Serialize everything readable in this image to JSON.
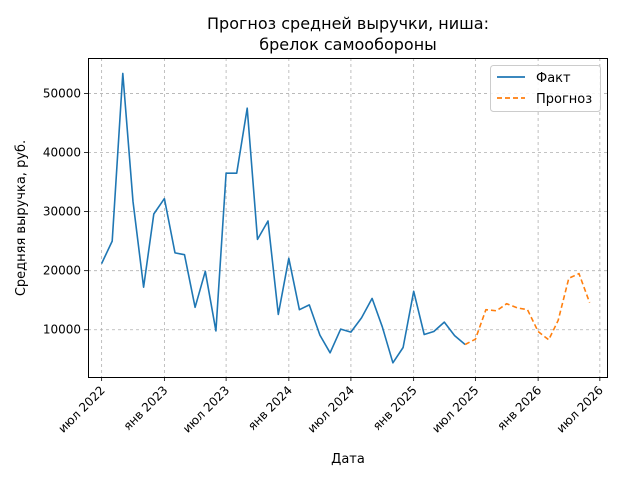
{
  "chart_data": {
    "type": "line",
    "title_lines": [
      "Прогноз средней выручки, ниша:",
      "брелок самообороны"
    ],
    "xlabel": "Дата",
    "ylabel": "Средняя выручка, руб.",
    "grid": true,
    "legend_position": "top-right",
    "xlim": [
      "2022-05-22",
      "2026-07-22"
    ],
    "ylim": [
      2000,
      56000
    ],
    "x_ticks": [
      {
        "date": "2022-07-01",
        "label": "июл 2022"
      },
      {
        "date": "2023-01-01",
        "label": "янв 2023"
      },
      {
        "date": "2023-07-01",
        "label": "июл 2023"
      },
      {
        "date": "2024-01-01",
        "label": "янв 2024"
      },
      {
        "date": "2024-07-01",
        "label": "июл 2024"
      },
      {
        "date": "2025-01-01",
        "label": "янв 2025"
      },
      {
        "date": "2025-07-01",
        "label": "июл 2025"
      },
      {
        "date": "2026-01-01",
        "label": "янв 2026"
      },
      {
        "date": "2026-07-01",
        "label": "июл 2026"
      }
    ],
    "y_ticks": [
      10000,
      20000,
      30000,
      40000,
      50000
    ],
    "series": [
      {
        "name": "Факт",
        "color": "#1f77b4",
        "style": "solid",
        "x": [
          "2022-07-01",
          "2022-08-01",
          "2022-09-01",
          "2022-10-01",
          "2022-11-01",
          "2022-12-01",
          "2023-01-01",
          "2023-02-01",
          "2023-03-01",
          "2023-04-01",
          "2023-05-01",
          "2023-06-01",
          "2023-07-01",
          "2023-08-01",
          "2023-09-01",
          "2023-10-01",
          "2023-11-01",
          "2023-12-01",
          "2024-01-01",
          "2024-02-01",
          "2024-03-01",
          "2024-04-01",
          "2024-05-01",
          "2024-06-01",
          "2024-07-01",
          "2024-08-01",
          "2024-09-01",
          "2024-10-01",
          "2024-11-01",
          "2024-12-01",
          "2025-01-01",
          "2025-02-01",
          "2025-03-01",
          "2025-04-01",
          "2025-05-01",
          "2025-06-01"
        ],
        "values": [
          21200,
          25000,
          53400,
          31700,
          17200,
          29600,
          32200,
          23000,
          22700,
          13800,
          19900,
          9800,
          36500,
          36500,
          47500,
          25300,
          28400,
          12600,
          22100,
          13400,
          14200,
          9100,
          6100,
          10100,
          9600,
          12000,
          15300,
          10500,
          4400,
          7000,
          16500,
          9200,
          9700,
          11300,
          9000,
          7500
        ]
      },
      {
        "name": "Прогноз",
        "color": "#ff7f0e",
        "style": "dashed",
        "x": [
          "2025-06-01",
          "2025-07-01",
          "2025-08-01",
          "2025-09-01",
          "2025-10-01",
          "2025-11-01",
          "2025-12-01",
          "2026-01-01",
          "2026-02-01",
          "2026-03-01",
          "2026-04-01",
          "2026-05-01",
          "2026-06-01"
        ],
        "values": [
          7500,
          8400,
          13400,
          13200,
          14400,
          13700,
          13400,
          9700,
          8300,
          11600,
          18700,
          19500,
          14600
        ]
      }
    ]
  }
}
